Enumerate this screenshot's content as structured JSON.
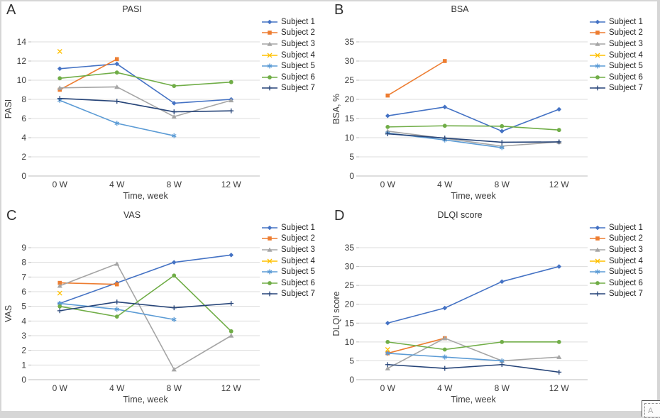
{
  "overlay": {
    "annotation_box_label": "A"
  },
  "style": {
    "grid_color": "#dcdcdc",
    "axis_color": "#bdbdbd",
    "tick_color": "#bdbdbd",
    "text_color": "#3c3c3c",
    "background": "#ffffff"
  },
  "chart_data": [
    {
      "panel_letter": "A",
      "type": "line",
      "title": "PASI",
      "xlabel": "Time, week",
      "ylabel": "PASI",
      "categories": [
        "0 W",
        "4 W",
        "8 W",
        "12 W"
      ],
      "ylim": [
        0,
        14
      ],
      "ytick_step": 2,
      "grid": true,
      "legend_position": "right",
      "series": [
        {
          "name": "Subject 1",
          "color": "#4472C4",
          "marker": "diamond",
          "values": [
            11.2,
            11.7,
            7.6,
            8.0
          ]
        },
        {
          "name": "Subject 2",
          "color": "#ED7D31",
          "marker": "square",
          "values": [
            9.0,
            12.2,
            null,
            null
          ]
        },
        {
          "name": "Subject 3",
          "color": "#A5A5A5",
          "marker": "triangle",
          "values": [
            9.2,
            9.3,
            6.2,
            7.9
          ]
        },
        {
          "name": "Subject 4",
          "color": "#FFC000",
          "marker": "x",
          "values": [
            13.0,
            null,
            null,
            null
          ]
        },
        {
          "name": "Subject 5",
          "color": "#5B9BD5",
          "marker": "asterisk",
          "values": [
            7.9,
            5.5,
            4.2,
            null
          ]
        },
        {
          "name": "Subject 6",
          "color": "#70AD47",
          "marker": "circle",
          "values": [
            10.2,
            10.8,
            9.4,
            9.8
          ]
        },
        {
          "name": "Subject 7",
          "color": "#264478",
          "marker": "plus",
          "values": [
            8.1,
            7.8,
            6.7,
            6.8
          ]
        }
      ]
    },
    {
      "panel_letter": "B",
      "type": "line",
      "title": "BSA",
      "xlabel": "Time, week",
      "ylabel": "BSA, %",
      "categories": [
        "0 W",
        "4 W",
        "8 W",
        "12 W"
      ],
      "ylim": [
        0,
        35
      ],
      "ytick_step": 5,
      "grid": true,
      "legend_position": "right",
      "series": [
        {
          "name": "Subject 1",
          "color": "#4472C4",
          "marker": "diamond",
          "values": [
            15.7,
            18.0,
            11.7,
            17.4
          ]
        },
        {
          "name": "Subject 2",
          "color": "#ED7D31",
          "marker": "square",
          "values": [
            21.0,
            30.0,
            null,
            null
          ]
        },
        {
          "name": "Subject 3",
          "color": "#A5A5A5",
          "marker": "triangle",
          "values": [
            11.7,
            9.8,
            7.8,
            8.9
          ]
        },
        {
          "name": "Subject 4",
          "color": "#FFC000",
          "marker": "x",
          "values": [
            null,
            null,
            null,
            null
          ]
        },
        {
          "name": "Subject 5",
          "color": "#5B9BD5",
          "marker": "asterisk",
          "values": [
            11.2,
            9.4,
            7.4,
            null
          ]
        },
        {
          "name": "Subject 6",
          "color": "#70AD47",
          "marker": "circle",
          "values": [
            12.8,
            13.1,
            13.0,
            12.0
          ]
        },
        {
          "name": "Subject 7",
          "color": "#264478",
          "marker": "plus",
          "values": [
            11.0,
            9.9,
            8.8,
            8.9
          ]
        }
      ]
    },
    {
      "panel_letter": "C",
      "type": "line",
      "title": "VAS",
      "xlabel": "Time, week",
      "ylabel": "VAS",
      "categories": [
        "0 W",
        "4 W",
        "8 W",
        "12 W"
      ],
      "ylim": [
        0,
        9
      ],
      "ytick_step": 1,
      "grid": true,
      "legend_position": "right",
      "series": [
        {
          "name": "Subject 1",
          "color": "#4472C4",
          "marker": "diamond",
          "values": [
            5.2,
            6.6,
            8.0,
            8.5
          ]
        },
        {
          "name": "Subject 2",
          "color": "#ED7D31",
          "marker": "square",
          "values": [
            6.6,
            6.5,
            null,
            null
          ]
        },
        {
          "name": "Subject 3",
          "color": "#A5A5A5",
          "marker": "triangle",
          "values": [
            6.4,
            7.9,
            0.7,
            3.0
          ]
        },
        {
          "name": "Subject 4",
          "color": "#FFC000",
          "marker": "x",
          "values": [
            5.9,
            null,
            null,
            null
          ]
        },
        {
          "name": "Subject 5",
          "color": "#5B9BD5",
          "marker": "asterisk",
          "values": [
            5.2,
            4.8,
            4.1,
            null
          ]
        },
        {
          "name": "Subject 6",
          "color": "#70AD47",
          "marker": "circle",
          "values": [
            5.0,
            4.3,
            7.1,
            3.3
          ]
        },
        {
          "name": "Subject 7",
          "color": "#264478",
          "marker": "plus",
          "values": [
            4.7,
            5.3,
            4.9,
            5.2
          ]
        }
      ]
    },
    {
      "panel_letter": "D",
      "type": "line",
      "title": "DLQI score",
      "xlabel": "Time, week",
      "ylabel": "DLQI score",
      "categories": [
        "0 W",
        "4 W",
        "8 W",
        "12 W"
      ],
      "ylim": [
        0,
        35
      ],
      "ytick_step": 5,
      "grid": true,
      "legend_position": "right",
      "series": [
        {
          "name": "Subject 1",
          "color": "#4472C4",
          "marker": "diamond",
          "values": [
            15,
            19,
            26,
            30
          ]
        },
        {
          "name": "Subject 2",
          "color": "#ED7D31",
          "marker": "square",
          "values": [
            7,
            11,
            null,
            null
          ]
        },
        {
          "name": "Subject 3",
          "color": "#A5A5A5",
          "marker": "triangle",
          "values": [
            3,
            11,
            5,
            6
          ]
        },
        {
          "name": "Subject 4",
          "color": "#FFC000",
          "marker": "x",
          "values": [
            8,
            null,
            null,
            null
          ]
        },
        {
          "name": "Subject 5",
          "color": "#5B9BD5",
          "marker": "asterisk",
          "values": [
            7,
            6,
            5,
            null
          ]
        },
        {
          "name": "Subject 6",
          "color": "#70AD47",
          "marker": "circle",
          "values": [
            10,
            8,
            10,
            10
          ]
        },
        {
          "name": "Subject 7",
          "color": "#264478",
          "marker": "plus",
          "values": [
            4,
            3,
            4,
            2
          ]
        }
      ]
    }
  ]
}
